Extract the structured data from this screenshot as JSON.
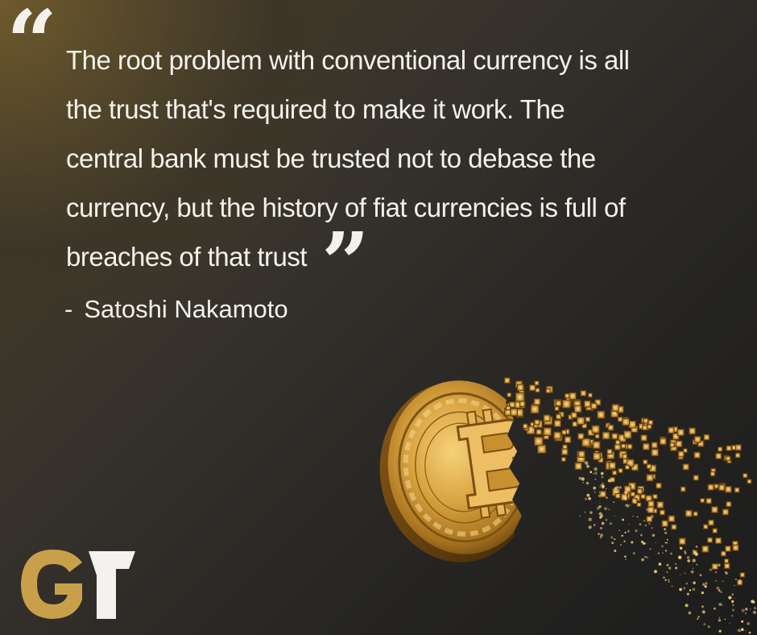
{
  "quote": {
    "lines": [
      "The root problem with conventional currency is all",
      "the trust that's required to make it work. The",
      "central bank must be trusted not to debase the",
      "currency, but the history of fiat currencies is full of",
      "breaches of that trust"
    ],
    "open_mark": "“",
    "close_mark": "”"
  },
  "author": {
    "dash": "-",
    "name": "Satoshi Nakamoto"
  },
  "logo": {
    "text": "GT",
    "colors": {
      "g": "#c9a04a",
      "t": "#f4f2ee"
    }
  },
  "colors": {
    "text": "#f2f1ec",
    "gold": "#c8982f",
    "gold_light": "#f0c968",
    "background_dark": "#1c1c1c"
  },
  "illustration": {
    "icon": "bitcoin-coin-disintegrating-icon"
  }
}
